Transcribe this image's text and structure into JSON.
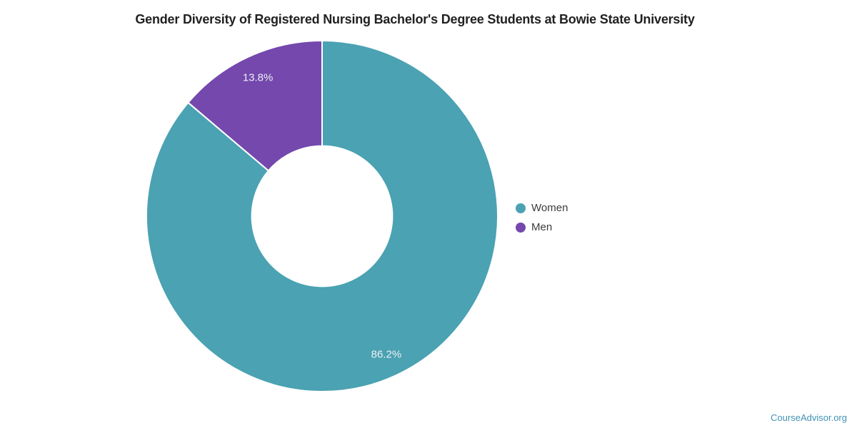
{
  "page": {
    "background": "#ffffff",
    "watermark": "CourseAdvisor.org",
    "watermark_color": "#4191b5"
  },
  "chart_data": {
    "type": "pie",
    "subtype": "donut",
    "title": "Gender Diversity of Registered Nursing Bachelor's Degree Students at Bowie State University",
    "title_color": "#212121",
    "series": [
      {
        "name": "Women",
        "value": 86.2,
        "label": "86.2%",
        "color": "#4aa2b2"
      },
      {
        "name": "Men",
        "value": 13.8,
        "label": "13.8%",
        "color": "#7448ad"
      }
    ],
    "legend": {
      "position": "right",
      "items": [
        "Women",
        "Men"
      ]
    },
    "start_angle_deg": -90,
    "direction": "clockwise",
    "center": {
      "x": 451,
      "y": 303
    },
    "outer_radius": 246,
    "inner_radius_ratio": 0.4,
    "label_radius_ratio": 0.87,
    "label_color": "#eef0f5",
    "slice_border_color": "#ffffff",
    "slice_border_width": 2
  }
}
